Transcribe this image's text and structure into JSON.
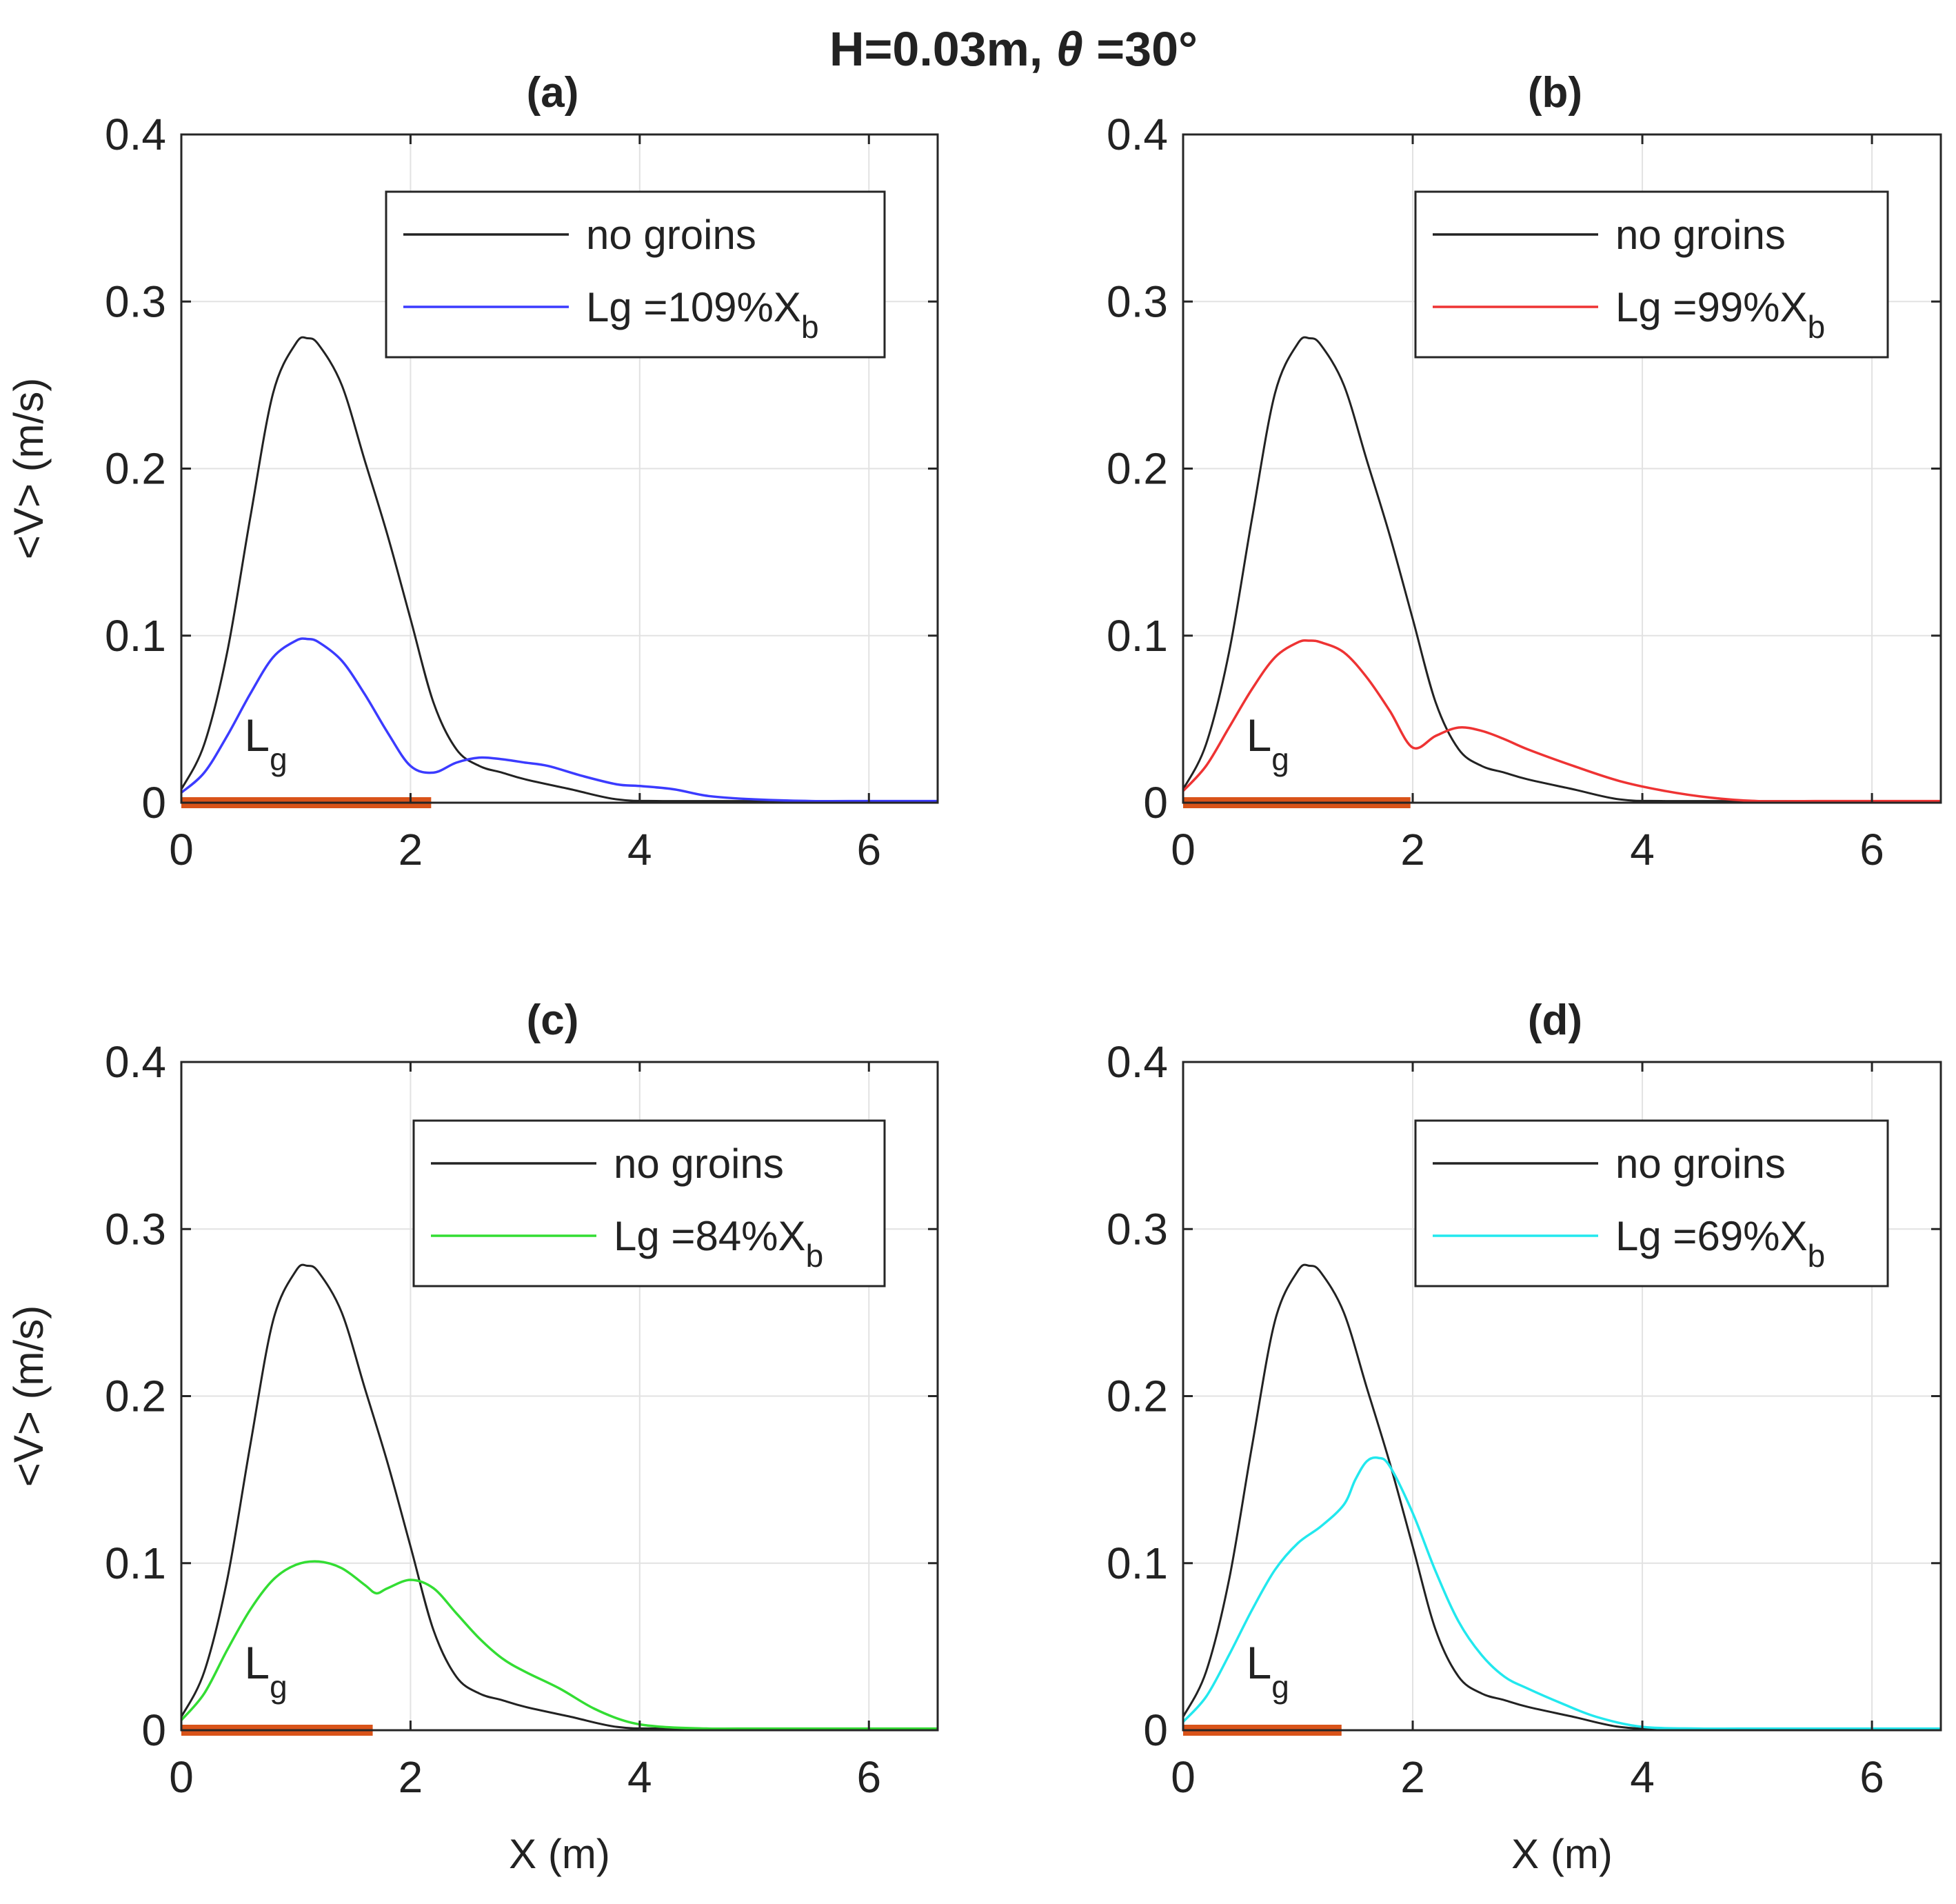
{
  "figure": {
    "title_prefix": "H=0.03m, ",
    "title_theta": "θ",
    "title_suffix": " =30°"
  },
  "colors": {
    "baseline": "#222222",
    "groin_bar": "#d95319",
    "grid": "#e2e2e2",
    "axes": "#262626"
  },
  "chart_data": [
    {
      "type": "line",
      "panel": "(a)",
      "xlabel": "",
      "ylabel": "<V> (m/s)",
      "xlim": [
        0,
        6.6
      ],
      "ylim": [
        0,
        0.4
      ],
      "xticks": [
        0,
        2,
        4,
        6
      ],
      "yticks": [
        0,
        0.1,
        0.2,
        0.3,
        0.4
      ],
      "grid": true,
      "legend_position": "upper-right",
      "groin_length_m": 2.18,
      "groin_label_main": "L",
      "groin_label_sub": "g",
      "series": [
        {
          "name": "no groins",
          "color": "#222222",
          "x": [
            0,
            0.2,
            0.4,
            0.6,
            0.8,
            1.0,
            1.1,
            1.2,
            1.4,
            1.6,
            1.8,
            2.0,
            2.2,
            2.4,
            2.6,
            2.8,
            3.0,
            3.4,
            3.8,
            4.2,
            5.0,
            6.0,
            6.6
          ],
          "y": [
            0.008,
            0.035,
            0.09,
            0.17,
            0.245,
            0.275,
            0.278,
            0.274,
            0.25,
            0.205,
            0.16,
            0.11,
            0.06,
            0.032,
            0.022,
            0.018,
            0.014,
            0.008,
            0.002,
            0.001,
            0.001,
            0.001,
            0.001
          ]
        },
        {
          "name": "Lg =109%X",
          "name_sub": "b",
          "color": "#3b3bff",
          "x": [
            0,
            0.2,
            0.4,
            0.6,
            0.8,
            1.0,
            1.1,
            1.2,
            1.4,
            1.6,
            1.8,
            2.0,
            2.2,
            2.4,
            2.6,
            2.8,
            3.0,
            3.2,
            3.5,
            3.8,
            4.0,
            4.3,
            4.6,
            5.0,
            5.5,
            6.0,
            6.6
          ],
          "y": [
            0.006,
            0.018,
            0.04,
            0.065,
            0.087,
            0.097,
            0.098,
            0.096,
            0.085,
            0.065,
            0.042,
            0.022,
            0.018,
            0.024,
            0.027,
            0.026,
            0.024,
            0.022,
            0.016,
            0.011,
            0.01,
            0.008,
            0.004,
            0.002,
            0.001,
            0.001,
            0.001
          ]
        }
      ]
    },
    {
      "type": "line",
      "panel": "(b)",
      "xlabel": "",
      "ylabel": "",
      "xlim": [
        0,
        6.6
      ],
      "ylim": [
        0,
        0.4
      ],
      "xticks": [
        0,
        2,
        4,
        6
      ],
      "yticks": [
        0,
        0.1,
        0.2,
        0.3,
        0.4
      ],
      "grid": true,
      "legend_position": "upper-right",
      "groin_length_m": 1.98,
      "groin_label_main": "L",
      "groin_label_sub": "g",
      "series": [
        {
          "name": "no groins",
          "color": "#222222",
          "x": [
            0,
            0.2,
            0.4,
            0.6,
            0.8,
            1.0,
            1.1,
            1.2,
            1.4,
            1.6,
            1.8,
            2.0,
            2.2,
            2.4,
            2.6,
            2.8,
            3.0,
            3.4,
            3.8,
            4.2,
            5.0,
            6.0,
            6.6
          ],
          "y": [
            0.008,
            0.035,
            0.09,
            0.17,
            0.245,
            0.275,
            0.278,
            0.274,
            0.25,
            0.205,
            0.16,
            0.11,
            0.06,
            0.032,
            0.022,
            0.018,
            0.014,
            0.008,
            0.002,
            0.001,
            0.001,
            0.001,
            0.001
          ]
        },
        {
          "name": "Lg =99%X",
          "name_sub": "b",
          "color": "#ee3333",
          "x": [
            0,
            0.2,
            0.4,
            0.6,
            0.8,
            1.0,
            1.1,
            1.2,
            1.4,
            1.6,
            1.8,
            2.0,
            2.2,
            2.4,
            2.6,
            2.8,
            3.0,
            3.4,
            3.8,
            4.2,
            4.6,
            5.0,
            5.5,
            6.0,
            6.6
          ],
          "y": [
            0.007,
            0.022,
            0.045,
            0.068,
            0.087,
            0.096,
            0.097,
            0.096,
            0.09,
            0.075,
            0.055,
            0.033,
            0.04,
            0.045,
            0.043,
            0.038,
            0.032,
            0.022,
            0.013,
            0.007,
            0.003,
            0.001,
            0.001,
            0.001,
            0.001
          ]
        }
      ]
    },
    {
      "type": "line",
      "panel": "(c)",
      "xlabel": "X (m)",
      "ylabel": "<V> (m/s)",
      "xlim": [
        0,
        6.6
      ],
      "ylim": [
        0,
        0.4
      ],
      "xticks": [
        0,
        2,
        4,
        6
      ],
      "yticks": [
        0,
        0.1,
        0.2,
        0.3,
        0.4
      ],
      "grid": true,
      "legend_position": "upper-right",
      "groin_length_m": 1.67,
      "groin_label_main": "L",
      "groin_label_sub": "g",
      "series": [
        {
          "name": "no groins",
          "color": "#222222",
          "x": [
            0,
            0.2,
            0.4,
            0.6,
            0.8,
            1.0,
            1.1,
            1.2,
            1.4,
            1.6,
            1.8,
            2.0,
            2.2,
            2.4,
            2.6,
            2.8,
            3.0,
            3.4,
            3.8,
            4.2,
            5.0,
            6.0,
            6.6
          ],
          "y": [
            0.008,
            0.035,
            0.09,
            0.17,
            0.245,
            0.275,
            0.278,
            0.274,
            0.25,
            0.205,
            0.16,
            0.11,
            0.06,
            0.032,
            0.022,
            0.018,
            0.014,
            0.008,
            0.002,
            0.001,
            0.001,
            0.001,
            0.001
          ]
        },
        {
          "name": "Lg =84%X",
          "name_sub": "b",
          "color": "#33dd33",
          "x": [
            0,
            0.2,
            0.4,
            0.6,
            0.8,
            1.0,
            1.2,
            1.4,
            1.6,
            1.7,
            1.8,
            2.0,
            2.2,
            2.4,
            2.6,
            2.8,
            3.0,
            3.3,
            3.6,
            3.9,
            4.2,
            4.6,
            5.0,
            5.5,
            6.0,
            6.6
          ],
          "y": [
            0.006,
            0.022,
            0.048,
            0.072,
            0.09,
            0.099,
            0.101,
            0.097,
            0.087,
            0.082,
            0.085,
            0.09,
            0.085,
            0.07,
            0.055,
            0.043,
            0.035,
            0.025,
            0.013,
            0.005,
            0.002,
            0.001,
            0.001,
            0.001,
            0.001,
            0.001
          ]
        }
      ]
    },
    {
      "type": "line",
      "panel": "(d)",
      "xlabel": "X (m)",
      "ylabel": "",
      "xlim": [
        0,
        6.6
      ],
      "ylim": [
        0,
        0.4
      ],
      "xticks": [
        0,
        2,
        4,
        6
      ],
      "yticks": [
        0,
        0.1,
        0.2,
        0.3,
        0.4
      ],
      "grid": true,
      "legend_position": "upper-right",
      "groin_length_m": 1.38,
      "groin_label_main": "L",
      "groin_label_sub": "g",
      "series": [
        {
          "name": "no groins",
          "color": "#222222",
          "x": [
            0,
            0.2,
            0.4,
            0.6,
            0.8,
            1.0,
            1.1,
            1.2,
            1.4,
            1.6,
            1.8,
            2.0,
            2.2,
            2.4,
            2.6,
            2.8,
            3.0,
            3.4,
            3.8,
            4.2,
            5.0,
            6.0,
            6.6
          ],
          "y": [
            0.008,
            0.035,
            0.09,
            0.17,
            0.245,
            0.275,
            0.278,
            0.274,
            0.25,
            0.205,
            0.16,
            0.11,
            0.06,
            0.032,
            0.022,
            0.018,
            0.014,
            0.008,
            0.002,
            0.001,
            0.001,
            0.001,
            0.001
          ]
        },
        {
          "name": "Lg =69%X",
          "name_sub": "b",
          "color": "#22e8ee",
          "x": [
            0,
            0.2,
            0.4,
            0.6,
            0.8,
            1.0,
            1.2,
            1.4,
            1.5,
            1.6,
            1.7,
            1.8,
            2.0,
            2.2,
            2.4,
            2.6,
            2.8,
            3.0,
            3.3,
            3.6,
            4.0,
            4.5,
            5.0,
            5.5,
            6.0,
            6.6
          ],
          "y": [
            0.005,
            0.02,
            0.045,
            0.072,
            0.096,
            0.112,
            0.122,
            0.135,
            0.15,
            0.161,
            0.163,
            0.158,
            0.13,
            0.095,
            0.065,
            0.045,
            0.032,
            0.025,
            0.016,
            0.008,
            0.002,
            0.001,
            0.001,
            0.001,
            0.001,
            0.001
          ]
        }
      ]
    }
  ]
}
